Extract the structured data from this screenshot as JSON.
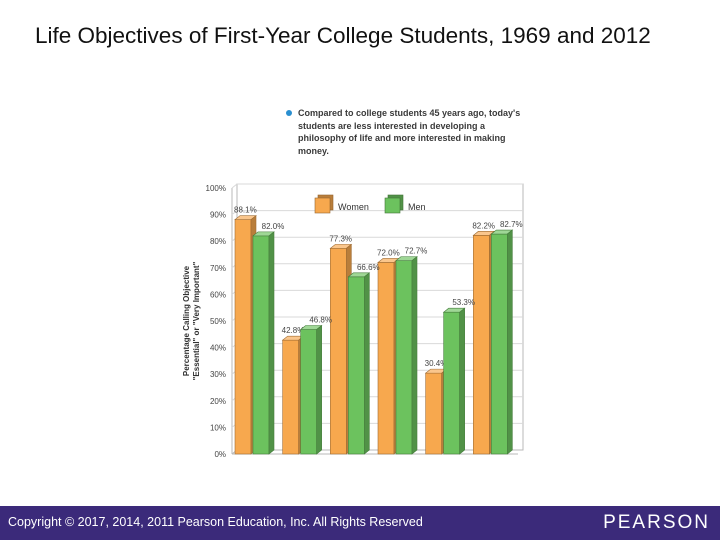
{
  "slide": {
    "title": "Life Objectives of First-Year College Students, 1969 and 2012",
    "callout": "Compared to college students 45 years ago, today's students are less interested in developing a philosophy of life and more interested in making money."
  },
  "footer": {
    "copyright": "Copyright © 2017, 2014, 2011 Pearson Education, Inc. All Rights Reserved",
    "brand": "PEARSON",
    "background": "#3b2a7a"
  },
  "chart_data": {
    "type": "bar",
    "title": "",
    "xlabel": "",
    "ylabel": "Percentage Calling Objective \"Essential\" or \"Very Important\"",
    "ylim": [
      0,
      100
    ],
    "y_ticks": [
      "0%",
      "10%",
      "20%",
      "30%",
      "40%",
      "50%",
      "60%",
      "70%",
      "80%",
      "90%",
      "100%"
    ],
    "grid": true,
    "legend_position": "top-center",
    "categories": [
      "",
      "",
      "",
      "",
      "",
      ""
    ],
    "series": [
      {
        "name": "Women",
        "color": "#f7a84e",
        "values": [
          88.1,
          42.8,
          77.3,
          72.0,
          30.4,
          82.2
        ],
        "labels": [
          "88.1%",
          "42.8%",
          "77.3%",
          "72.0%",
          "30.4%",
          "82.2%"
        ]
      },
      {
        "name": "Men",
        "color": "#6cc25e",
        "values": [
          82.0,
          46.8,
          66.6,
          72.7,
          53.3,
          82.7
        ],
        "labels": [
          "82.0%",
          "46.8%",
          "66.6%",
          "72.7%",
          "53.3%",
          "82.7%"
        ]
      }
    ]
  }
}
